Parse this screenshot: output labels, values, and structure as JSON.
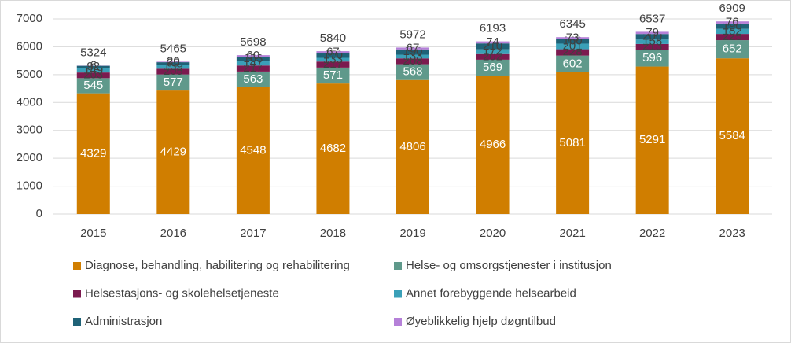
{
  "chart_data": {
    "type": "stacked-bar",
    "categories": [
      "2015",
      "2016",
      "2017",
      "2018",
      "2019",
      "2020",
      "2021",
      "2022",
      "2023"
    ],
    "series": [
      {
        "name": "Diagnose, behandling, habilitering og rehabilitering",
        "color": "#d07e00",
        "values": [
          4329,
          4429,
          4548,
          4682,
          4806,
          4966,
          5081,
          5291,
          5584
        ]
      },
      {
        "name": "Helse- og omsorgstjenester i institusjon",
        "color": "#5f998b",
        "values": [
          545,
          577,
          563,
          571,
          568,
          569,
          602,
          596,
          652
        ]
      },
      {
        "name": "Helsestasjons- og skolehelsetjeneste",
        "color": "#7b1a4f",
        "values": [
          203,
          205,
          217,
          217,
          208,
          202,
          228,
          213,
          225
        ]
      },
      {
        "name": "Annet forebyggende helsearbeid",
        "color": "#3aa0b8",
        "values": [
          149,
          139,
          147,
          133,
          133,
          172,
          201,
          158,
          182
        ]
      },
      {
        "name": "Administrasjon",
        "color": "#1f6277",
        "values": [
          92,
          95,
          163,
          170,
          190,
          210,
          160,
          200,
          190
        ]
      },
      {
        "name": "Øyeblikkelig hjelp døgntilbud",
        "color": "#b580d8",
        "values": [
          6,
          20,
          60,
          67,
          67,
          74,
          73,
          79,
          76
        ]
      }
    ],
    "totals": [
      5324,
      5465,
      5698,
      5840,
      5972,
      6193,
      6345,
      6537,
      6909
    ],
    "ylim": [
      0,
      7000
    ],
    "yticks": [
      0,
      1000,
      2000,
      3000,
      4000,
      5000,
      6000,
      7000
    ]
  }
}
